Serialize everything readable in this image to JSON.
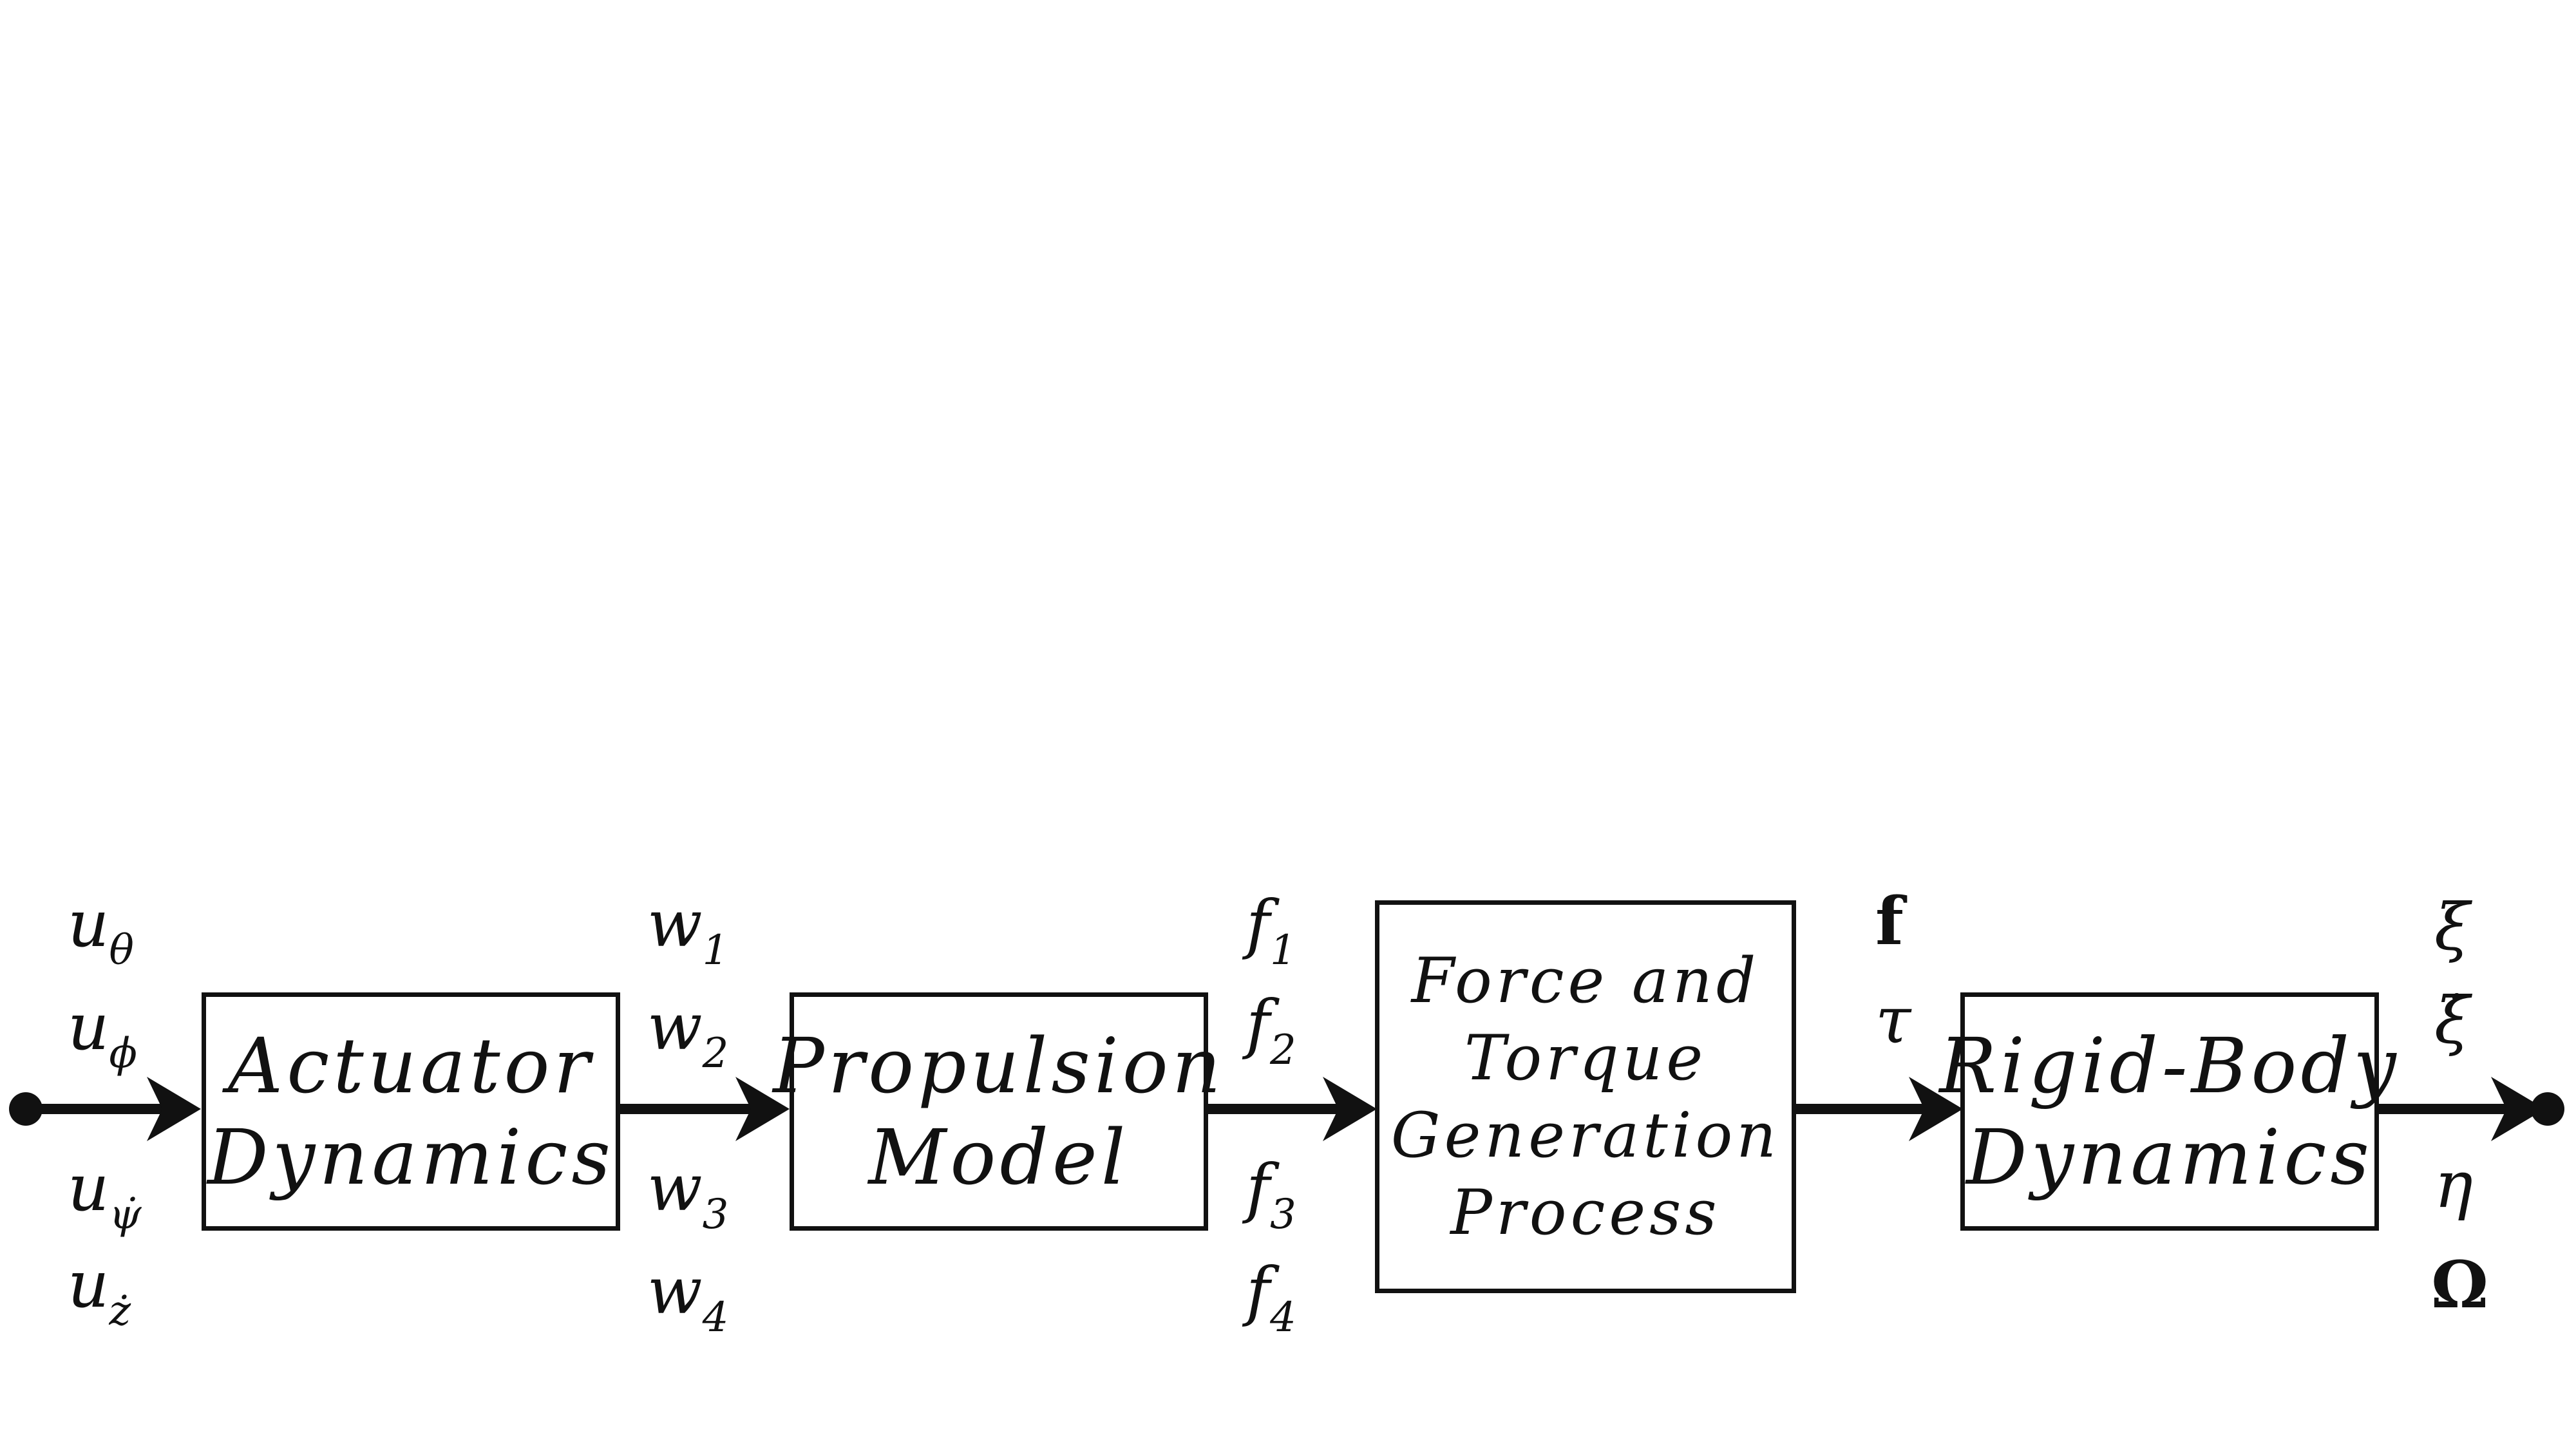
{
  "diagram": {
    "blocks": [
      {
        "id": "actuator",
        "lines": [
          "Actuator",
          "Dynamics"
        ]
      },
      {
        "id": "propulsion",
        "lines": [
          "Propulsion",
          "Model"
        ]
      },
      {
        "id": "force_torque",
        "lines": [
          "Force and",
          "Torque",
          "Generation",
          "Process"
        ]
      },
      {
        "id": "rigid_body",
        "lines": [
          "Rigid-Body",
          "Dynamics"
        ]
      }
    ],
    "signals": {
      "inputs": [
        {
          "base": "u",
          "sub": "θ"
        },
        {
          "base": "u",
          "sub": "ϕ"
        },
        {
          "base": "u",
          "sub": "ψ̇"
        },
        {
          "base": "u",
          "sub": "ż"
        }
      ],
      "actuator_out": [
        {
          "base": "w",
          "sub": "1"
        },
        {
          "base": "w",
          "sub": "2"
        },
        {
          "base": "w",
          "sub": "3"
        },
        {
          "base": "w",
          "sub": "4"
        }
      ],
      "propulsion_out": [
        {
          "base": "f",
          "sub": "1"
        },
        {
          "base": "f",
          "sub": "2"
        },
        {
          "base": "f",
          "sub": "3"
        },
        {
          "base": "f",
          "sub": "4"
        }
      ],
      "force_torque_out": [
        "f",
        "τ"
      ],
      "outputs": [
        "ξ",
        "ξ̇",
        "η",
        "Ω"
      ]
    }
  }
}
